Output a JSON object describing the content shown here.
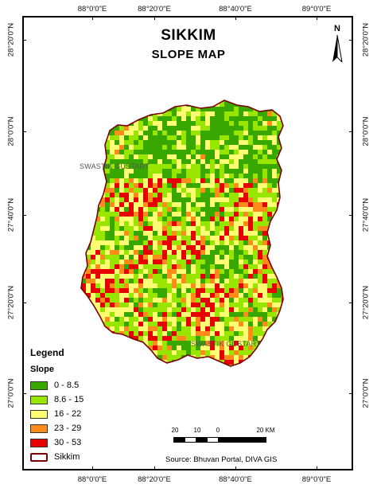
{
  "map": {
    "title": "SIKKIM",
    "subtitle": "SLOPE MAP",
    "north_label": "N",
    "source": "Source: Bhuvan Portal, DIVA GIS",
    "lon_labels": [
      "88°0'0\"E",
      "88°20'0\"E",
      "88°40'0\"E",
      "89°0'0\"E"
    ],
    "lat_labels": [
      "28°20'0\"N",
      "28°0'0\"N",
      "27°40'0\"N",
      "27°20'0\"N",
      "27°0'0\"N"
    ],
    "place_labels": [
      "SWASTIK GUSTART",
      "SWASTIK GUSTART"
    ]
  },
  "legend": {
    "title": "Legend",
    "subtitle": "Slope",
    "classes": [
      {
        "label": "0 - 8.5",
        "color": "#38a800"
      },
      {
        "label": "8.6 - 15",
        "color": "#98e600"
      },
      {
        "label": "16 - 22",
        "color": "#ffff73"
      },
      {
        "label": "23 - 29",
        "color": "#ff8c1a"
      },
      {
        "label": "30 - 53",
        "color": "#e60000"
      }
    ],
    "boundary": {
      "label": "Sikkim",
      "color": "#7a0000"
    }
  },
  "scale": {
    "labels": [
      "20",
      "10",
      "0",
      "20 KM"
    ]
  }
}
